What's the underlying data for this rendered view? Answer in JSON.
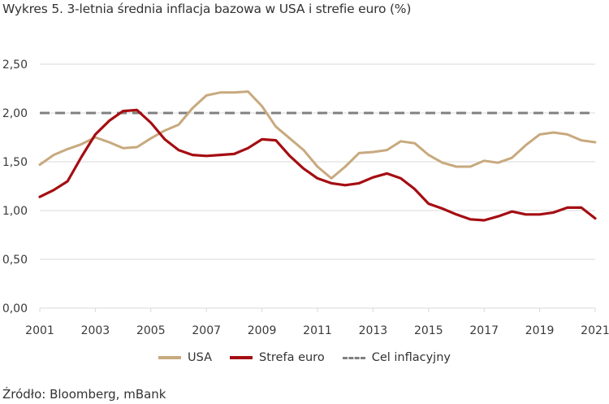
{
  "title": "Wykres 5. 3-letnia średnia inflacja bazowa w USA i strefie euro (%)",
  "source": "Źródło: Bloomberg, mBank",
  "chart_data": {
    "type": "line",
    "title": "Wykres 5. 3-letnia średnia inflacja bazowa w USA i strefie euro (%)",
    "xlabel": "",
    "ylabel": "",
    "xlim": [
      2001,
      2021
    ],
    "ylim": [
      0,
      2.5
    ],
    "grid": true,
    "legend_position": "bottom",
    "x_ticks": [
      2001,
      2003,
      2005,
      2007,
      2009,
      2011,
      2013,
      2015,
      2017,
      2019,
      2021
    ],
    "x_tick_labels": [
      "2001",
      "2003",
      "2005",
      "2007",
      "2009",
      "2011",
      "2013",
      "2015",
      "2017",
      "2019",
      "2021"
    ],
    "y_ticks": [
      0,
      0.5,
      1.0,
      1.5,
      2.0,
      2.5
    ],
    "y_tick_labels": [
      "0,00",
      "0,50",
      "1,00",
      "1,50",
      "2,00",
      "2,50"
    ],
    "x": [
      2001.0,
      2001.5,
      2002.0,
      2002.5,
      2003.0,
      2003.5,
      2004.0,
      2004.5,
      2005.0,
      2005.5,
      2006.0,
      2006.5,
      2007.0,
      2007.5,
      2008.0,
      2008.5,
      2009.0,
      2009.5,
      2010.0,
      2010.5,
      2011.0,
      2011.5,
      2012.0,
      2012.5,
      2013.0,
      2013.5,
      2014.0,
      2014.5,
      2015.0,
      2015.5,
      2016.0,
      2016.5,
      2017.0,
      2017.5,
      2018.0,
      2018.5,
      2019.0,
      2019.5,
      2020.0,
      2020.5,
      2021.0
    ],
    "series": [
      {
        "name": "USA",
        "color": "#c8a97e",
        "dashed": false,
        "values": [
          1.47,
          1.57,
          1.63,
          1.68,
          1.75,
          1.7,
          1.64,
          1.65,
          1.74,
          1.82,
          1.88,
          2.05,
          2.18,
          2.21,
          2.21,
          2.22,
          2.07,
          1.86,
          1.74,
          1.62,
          1.45,
          1.33,
          1.45,
          1.59,
          1.6,
          1.62,
          1.71,
          1.69,
          1.57,
          1.49,
          1.45,
          1.45,
          1.51,
          1.49,
          1.54,
          1.67,
          1.78,
          1.8,
          1.78,
          1.72,
          1.7
        ]
      },
      {
        "name": "Strefa euro",
        "color": "#a50d12",
        "dashed": false,
        "values": [
          1.14,
          1.21,
          1.3,
          1.55,
          1.78,
          1.92,
          2.02,
          2.03,
          1.9,
          1.73,
          1.62,
          1.57,
          1.56,
          1.57,
          1.58,
          1.64,
          1.73,
          1.72,
          1.56,
          1.43,
          1.33,
          1.28,
          1.26,
          1.28,
          1.34,
          1.38,
          1.33,
          1.22,
          1.07,
          1.02,
          0.96,
          0.91,
          0.9,
          0.94,
          0.99,
          0.96,
          0.96,
          0.98,
          1.03,
          1.03,
          0.92
        ]
      },
      {
        "name": "Cel inflacyjny",
        "color": "#808080",
        "dashed": true,
        "values": [
          2.0,
          2.0,
          2.0,
          2.0,
          2.0,
          2.0,
          2.0,
          2.0,
          2.0,
          2.0,
          2.0,
          2.0,
          2.0,
          2.0,
          2.0,
          2.0,
          2.0,
          2.0,
          2.0,
          2.0,
          2.0,
          2.0,
          2.0,
          2.0,
          2.0,
          2.0,
          2.0,
          2.0,
          2.0,
          2.0,
          2.0,
          2.0,
          2.0,
          2.0,
          2.0,
          2.0,
          2.0,
          2.0,
          2.0,
          2.0,
          2.0
        ]
      }
    ]
  },
  "legend": [
    {
      "label": "USA",
      "color": "#c8a97e",
      "dashed": false
    },
    {
      "label": "Strefa euro",
      "color": "#a50d12",
      "dashed": false
    },
    {
      "label": "Cel inflacyjny",
      "color": "#808080",
      "dashed": true
    }
  ]
}
